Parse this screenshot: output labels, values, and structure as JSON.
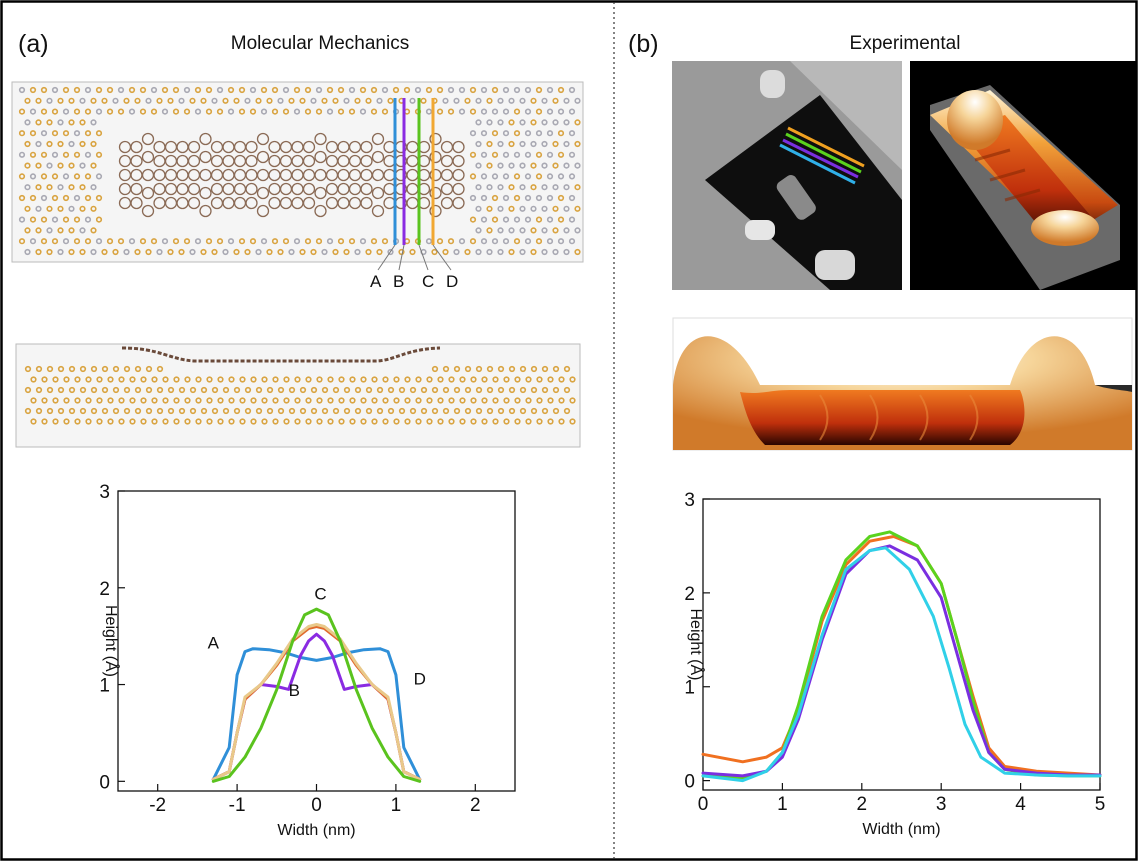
{
  "panel_a": {
    "label": "(a)",
    "title": "Molecular Mechanics",
    "line_labels": [
      "A",
      "B",
      "C",
      "D"
    ],
    "line_colors": [
      "#2f8fd8",
      "#8a2be2",
      "#5ac31e",
      "#f1a832"
    ]
  },
  "panel_b": {
    "label": "(b)",
    "title": "Experimental"
  },
  "colors": {
    "gold_atom": "#d9a441",
    "grey_atom": "#a9a9b3",
    "molecule": "#8a6a55",
    "frame": "#000000"
  },
  "chart_data": [
    {
      "type": "line",
      "xlabel": "Width (nm)",
      "ylabel": "Height (Å)",
      "xlim": [
        -2.5,
        2.5
      ],
      "ylim": [
        -0.1,
        3
      ],
      "xticks": [
        -2,
        -1,
        0,
        1,
        2
      ],
      "yticks": [
        0,
        1,
        2,
        3
      ],
      "series": [
        {
          "name": "A",
          "color": "#2f8fd8",
          "x": [
            -1.3,
            -1.1,
            -1.0,
            -0.9,
            -0.8,
            -0.6,
            -0.4,
            -0.2,
            0,
            0.2,
            0.4,
            0.6,
            0.8,
            0.9,
            1.0,
            1.1,
            1.3
          ],
          "y": [
            0.02,
            0.35,
            1.1,
            1.34,
            1.37,
            1.36,
            1.33,
            1.28,
            1.25,
            1.28,
            1.33,
            1.36,
            1.37,
            1.34,
            1.1,
            0.35,
            0.02
          ]
        },
        {
          "name": "B",
          "color": "#8a2be2",
          "x": [
            -1.3,
            -1.1,
            -1.0,
            -0.9,
            -0.7,
            -0.5,
            -0.35,
            -0.2,
            -0.1,
            0,
            0.1,
            0.2,
            0.35,
            0.5,
            0.7,
            0.9,
            1.0,
            1.1,
            1.3
          ],
          "y": [
            0.02,
            0.1,
            0.5,
            0.85,
            1.0,
            0.98,
            0.95,
            1.3,
            1.45,
            1.52,
            1.45,
            1.3,
            0.95,
            0.98,
            1.0,
            0.85,
            0.5,
            0.1,
            0.02
          ]
        },
        {
          "name": "",
          "color": "#e06a2c",
          "x": [
            -1.3,
            -1.1,
            -1.0,
            -0.9,
            -0.7,
            -0.5,
            -0.3,
            -0.1,
            0,
            0.1,
            0.3,
            0.5,
            0.7,
            0.9,
            1.0,
            1.1,
            1.3
          ],
          "y": [
            0.02,
            0.1,
            0.5,
            0.85,
            1.0,
            1.2,
            1.45,
            1.58,
            1.6,
            1.58,
            1.45,
            1.2,
            1.0,
            0.85,
            0.5,
            0.1,
            0.02
          ]
        },
        {
          "name": "D",
          "color": "#e9c98a",
          "x": [
            -1.3,
            -1.1,
            -1.0,
            -0.9,
            -0.7,
            -0.5,
            -0.3,
            -0.1,
            0,
            0.1,
            0.3,
            0.5,
            0.7,
            0.9,
            1.0,
            1.1,
            1.3
          ],
          "y": [
            0.02,
            0.1,
            0.5,
            0.87,
            1.0,
            1.22,
            1.47,
            1.6,
            1.62,
            1.6,
            1.47,
            1.22,
            1.0,
            0.87,
            0.5,
            0.1,
            0.02
          ]
        },
        {
          "name": "C",
          "color": "#5ac31e",
          "x": [
            -1.3,
            -1.1,
            -0.9,
            -0.7,
            -0.5,
            -0.3,
            -0.15,
            0,
            0.15,
            0.3,
            0.5,
            0.7,
            0.9,
            1.1,
            1.3
          ],
          "y": [
            0.0,
            0.05,
            0.25,
            0.55,
            0.95,
            1.45,
            1.72,
            1.78,
            1.72,
            1.45,
            0.95,
            0.55,
            0.25,
            0.05,
            0.0
          ]
        }
      ],
      "annotations": [
        {
          "text": "A",
          "x": -1.3,
          "y": 1.37
        },
        {
          "text": "B",
          "x": -0.28,
          "y": 0.88
        },
        {
          "text": "C",
          "x": 0.05,
          "y": 1.88
        },
        {
          "text": "D",
          "x": 1.3,
          "y": 1.0
        }
      ]
    },
    {
      "type": "line",
      "xlabel": "Width (nm)",
      "ylabel": "Height (Å)",
      "xlim": [
        0,
        5
      ],
      "ylim": [
        -0.1,
        3
      ],
      "xticks": [
        0,
        1,
        2,
        3,
        4,
        5
      ],
      "yticks": [
        0,
        1,
        2,
        3
      ],
      "series": [
        {
          "name": "",
          "color": "#f07020",
          "x": [
            0,
            0.5,
            0.8,
            1.0,
            1.2,
            1.5,
            1.8,
            2.1,
            2.4,
            2.7,
            3.0,
            3.2,
            3.4,
            3.6,
            3.8,
            4.2,
            4.6,
            5.0
          ],
          "y": [
            0.28,
            0.2,
            0.25,
            0.35,
            0.75,
            1.7,
            2.3,
            2.55,
            2.6,
            2.5,
            2.1,
            1.5,
            0.9,
            0.35,
            0.15,
            0.1,
            0.08,
            0.06
          ]
        },
        {
          "name": "",
          "color": "#5ad31e",
          "x": [
            0,
            0.5,
            0.8,
            1.0,
            1.2,
            1.5,
            1.8,
            2.1,
            2.35,
            2.7,
            3.0,
            3.2,
            3.4,
            3.6,
            3.8,
            4.2,
            4.6,
            5.0
          ],
          "y": [
            0.05,
            0.03,
            0.1,
            0.3,
            0.8,
            1.75,
            2.35,
            2.6,
            2.65,
            2.5,
            2.1,
            1.5,
            0.85,
            0.3,
            0.12,
            0.06,
            0.05,
            0.05
          ]
        },
        {
          "name": "",
          "color": "#7a2fe0",
          "x": [
            0,
            0.5,
            0.8,
            1.0,
            1.2,
            1.5,
            1.8,
            2.1,
            2.35,
            2.7,
            3.0,
            3.2,
            3.4,
            3.6,
            3.8,
            4.2,
            4.6,
            5.0
          ],
          "y": [
            0.08,
            0.05,
            0.1,
            0.25,
            0.65,
            1.5,
            2.2,
            2.45,
            2.5,
            2.35,
            1.95,
            1.35,
            0.75,
            0.3,
            0.12,
            0.08,
            0.06,
            0.06
          ]
        },
        {
          "name": "",
          "color": "#30d0e8",
          "x": [
            0,
            0.5,
            0.8,
            1.0,
            1.2,
            1.5,
            1.8,
            2.1,
            2.3,
            2.6,
            2.9,
            3.1,
            3.3,
            3.5,
            3.8,
            4.2,
            4.6,
            5.0
          ],
          "y": [
            0.05,
            0.0,
            0.1,
            0.3,
            0.7,
            1.55,
            2.25,
            2.45,
            2.48,
            2.25,
            1.75,
            1.2,
            0.6,
            0.25,
            0.08,
            0.06,
            0.05,
            0.05
          ]
        }
      ]
    }
  ]
}
